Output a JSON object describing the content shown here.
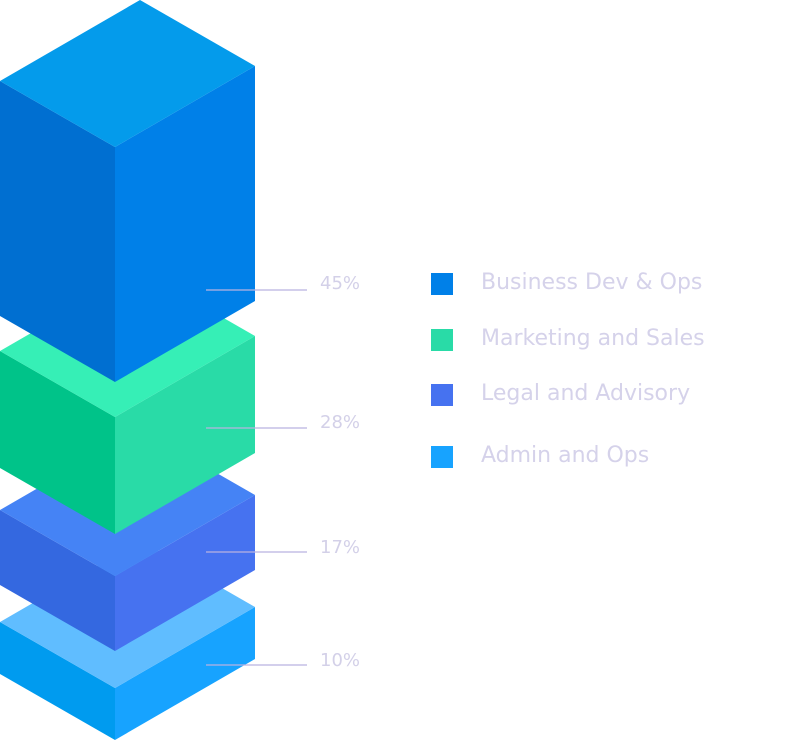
{
  "chart_data": {
    "type": "stacked-isometric-bar",
    "unit": "%",
    "categories": [
      "Business Dev & Ops",
      "Marketing and Sales",
      "Legal and Advisory",
      "Admin and Ops"
    ],
    "values": [
      45,
      28,
      17,
      10
    ],
    "labels": [
      "45%",
      "28%",
      "17%",
      "10%"
    ],
    "legend_placement": "right",
    "colors": [
      {
        "top": "#049BEB",
        "left": "#006FD1",
        "right": "#0080E8",
        "swatch": "#0080E8"
      },
      {
        "top": "#36EFB6",
        "left": "#00C389",
        "right": "#29DBA7",
        "swatch": "#29DBA7"
      },
      {
        "top": "#4583F5",
        "left": "#3468E0",
        "right": "#4672F0",
        "swatch": "#4672F0"
      },
      {
        "top": "#60BDFF",
        "left": "#009BEF",
        "right": "#17A3FF",
        "swatch": "#17A3FF"
      }
    ],
    "leader_line_color": "#B9B2E0"
  }
}
